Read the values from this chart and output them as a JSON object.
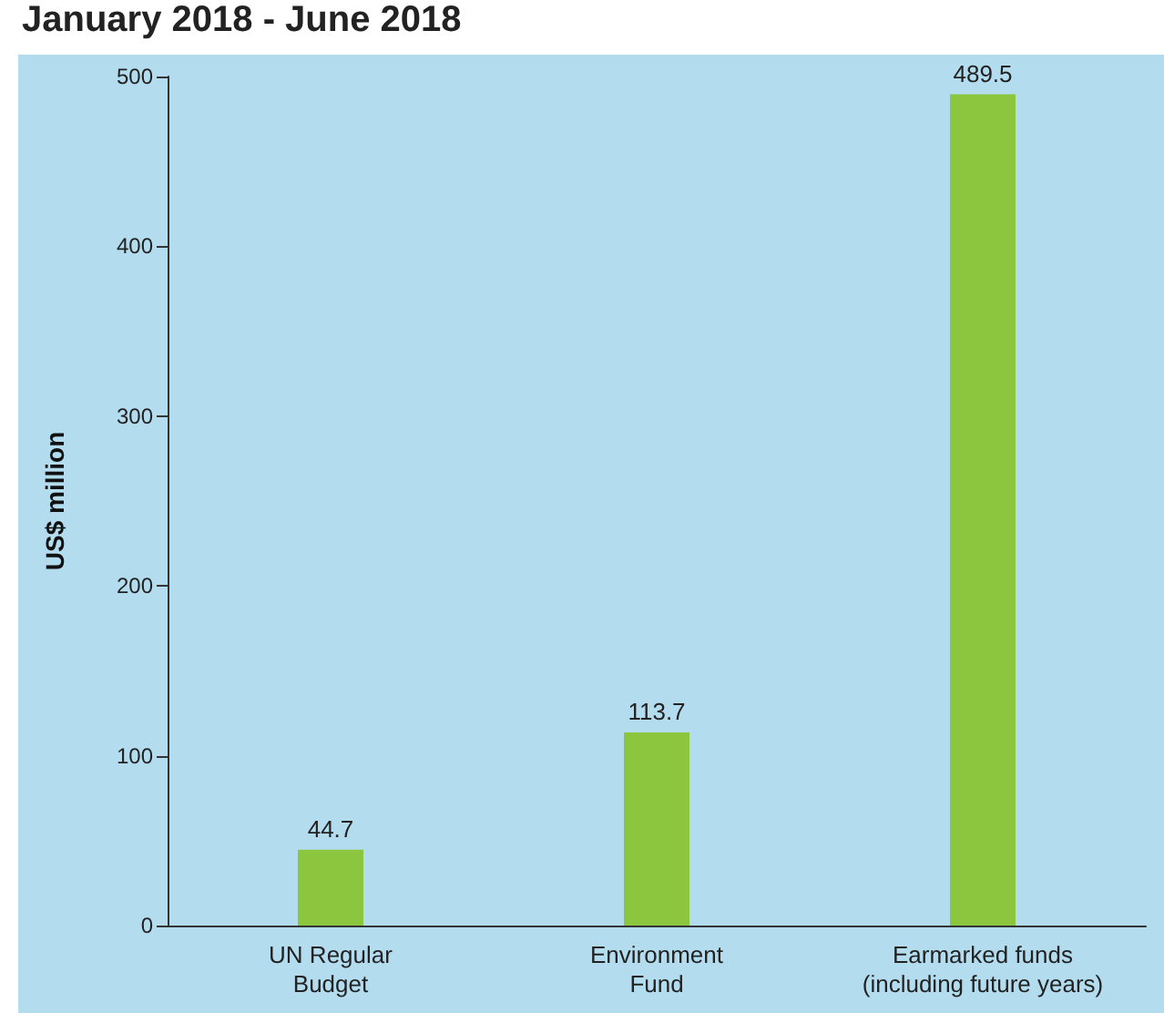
{
  "chart_data": {
    "type": "bar",
    "title": "January 2018 - June 2018",
    "ylabel": "US$ million",
    "categories": [
      "UN Regular\nBudget",
      "Environment\nFund",
      "Earmarked funds\n(including future years)"
    ],
    "values": [
      44.7,
      113.7,
      489.5
    ],
    "color": "#8cc63f",
    "data_labels": true,
    "ylim": [
      0,
      500
    ],
    "yticks": [
      0,
      100,
      200,
      300,
      400,
      500
    ],
    "grid": false
  }
}
